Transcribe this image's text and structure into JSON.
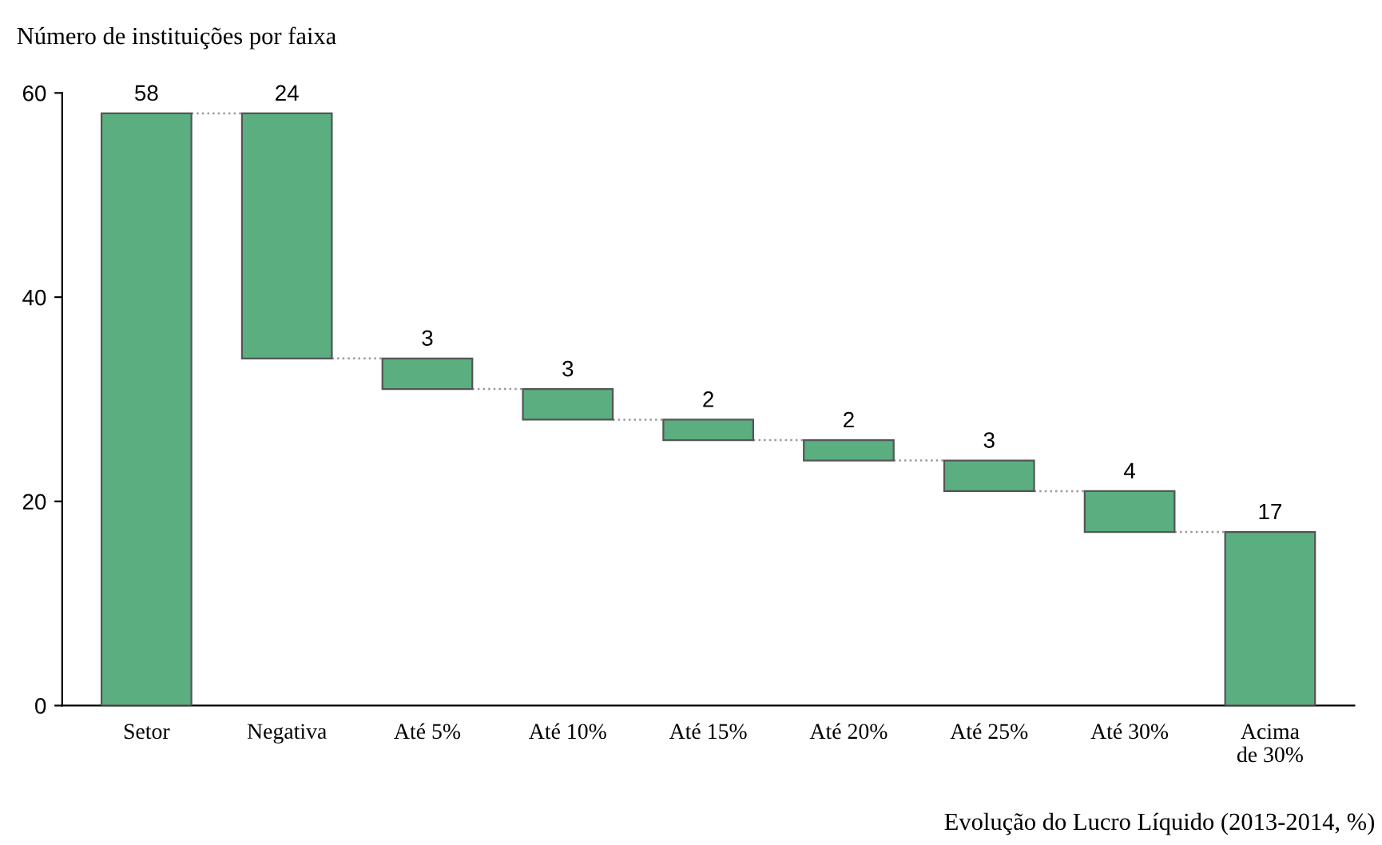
{
  "chart_data": {
    "type": "bar",
    "ylabel": "Número de instituições por faixa",
    "xlabel": "Evolução do Lucro Líquido (2013-2014, %)",
    "categories": [
      "Setor",
      "Negativa",
      "Até 5%",
      "Até 10%",
      "Até 15%",
      "Até 20%",
      "Até 25%",
      "Até 30%",
      "Acima\nde 30%"
    ],
    "values": [
      58,
      24,
      3,
      3,
      2,
      2,
      3,
      4,
      17
    ],
    "base": [
      0,
      34,
      31,
      28,
      26,
      24,
      21,
      17,
      0
    ],
    "color": "#5aae7f",
    "ylim": [
      0,
      60
    ],
    "yticks": [
      0,
      20,
      40,
      60
    ],
    "data_labels": true,
    "grid": false,
    "legend": false
  }
}
